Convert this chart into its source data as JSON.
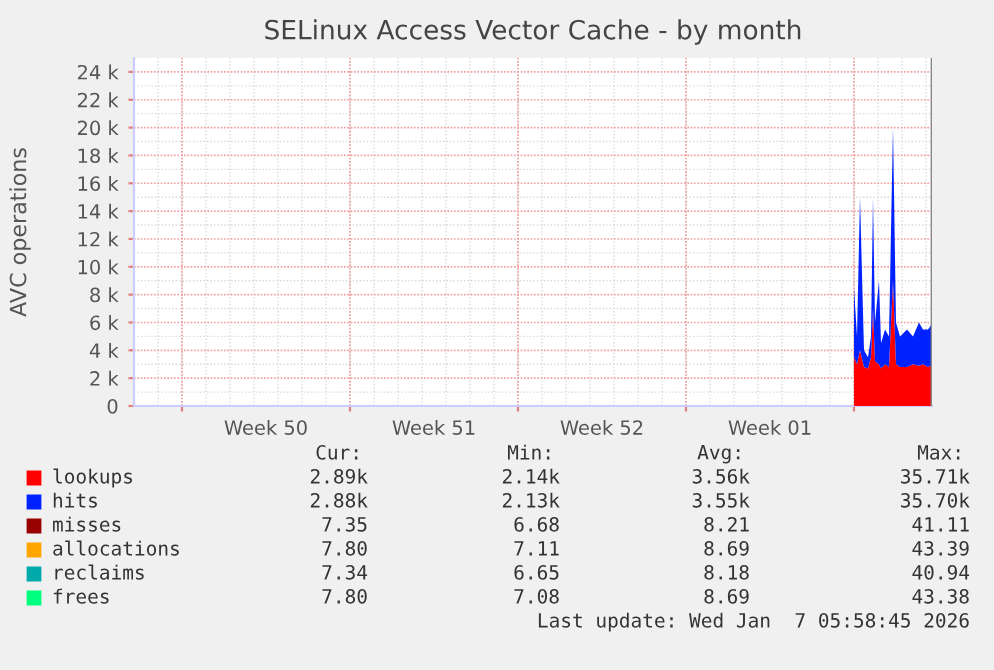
{
  "chart_data": {
    "type": "area",
    "title": "SELinux Access Vector Cache - by month",
    "ylabel": "AVC operations",
    "stacked": true,
    "x": [
      "2026-01-04T00:00",
      "2026-01-04T03:00",
      "2026-01-04T06:00",
      "2026-01-04T10:00",
      "2026-01-04T14:00",
      "2026-01-04T17:00",
      "2026-01-04T19:00",
      "2026-01-04T21:00",
      "2026-01-05T01:00",
      "2026-01-05T03:00",
      "2026-01-05T07:00",
      "2026-01-05T11:00",
      "2026-01-05T15:00",
      "2026-01-05T18:00",
      "2026-01-05T22:00",
      "2026-01-06T05:00",
      "2026-01-06T11:00",
      "2026-01-06T17:00",
      "2026-01-06T21:00",
      "2026-01-07T02:00",
      "2026-01-07T05:00"
    ],
    "series": [
      {
        "name": "lookups",
        "color": "#ff0000",
        "values": [
          3500,
          3000,
          4000,
          2800,
          2700,
          3500,
          7000,
          3200,
          3000,
          2700,
          3000,
          2800,
          9000,
          3000,
          2800,
          2800,
          3000,
          2900,
          3000,
          2800,
          2900
        ]
      },
      {
        "name": "hits",
        "color": "#0022ff",
        "values": [
          5000,
          2000,
          11000,
          1200,
          800,
          1500,
          8000,
          2800,
          6000,
          1800,
          2500,
          2200,
          11000,
          3000,
          2200,
          2700,
          2000,
          3100,
          2500,
          2700,
          2900
        ]
      },
      {
        "name": "misses",
        "color": "#990000",
        "values": [
          null,
          null,
          null,
          null,
          null,
          null,
          null,
          null,
          null,
          null,
          null,
          null,
          null,
          null,
          null,
          null,
          null,
          null,
          null,
          null,
          null
        ]
      },
      {
        "name": "allocations",
        "color": "#ffa500",
        "values": [
          null,
          null,
          null,
          null,
          null,
          null,
          null,
          null,
          null,
          null,
          null,
          null,
          null,
          null,
          null,
          null,
          null,
          null,
          null,
          null,
          null
        ]
      },
      {
        "name": "reclaims",
        "color": "#00aaaa",
        "values": [
          null,
          null,
          null,
          null,
          null,
          null,
          null,
          null,
          null,
          null,
          null,
          null,
          null,
          null,
          null,
          null,
          null,
          null,
          null,
          null,
          null
        ]
      },
      {
        "name": "frees",
        "color": "#00ff7f",
        "values": [
          null,
          null,
          null,
          null,
          null,
          null,
          null,
          null,
          null,
          null,
          null,
          null,
          null,
          null,
          null,
          null,
          null,
          null,
          null,
          null,
          null
        ]
      }
    ],
    "xlim": [
      "2025-12-05T00:00",
      "2026-01-07T06:00"
    ],
    "xticks": [
      {
        "value": "2025-12-07",
        "label": null
      },
      {
        "value": "2025-12-10T12:00",
        "label": "Week 50"
      },
      {
        "value": "2025-12-14",
        "label": null
      },
      {
        "value": "2025-12-17T12:00",
        "label": "Week 51"
      },
      {
        "value": "2025-12-21",
        "label": null
      },
      {
        "value": "2025-12-24T12:00",
        "label": "Week 52"
      },
      {
        "value": "2025-12-28",
        "label": null
      },
      {
        "value": "2025-12-31T12:00",
        "label": "Week 01"
      },
      {
        "value": "2026-01-04",
        "label": null
      }
    ],
    "ylim": [
      0,
      25000
    ],
    "yticks": [
      0,
      {
        "value": 2000,
        "label": "2 k"
      },
      {
        "value": 4000,
        "label": "4 k"
      },
      {
        "value": 6000,
        "label": "6 k"
      },
      {
        "value": 8000,
        "label": "8 k"
      },
      {
        "value": 10000,
        "label": "10 k"
      },
      {
        "value": 12000,
        "label": "12 k"
      },
      {
        "value": 14000,
        "label": "14 k"
      },
      {
        "value": 16000,
        "label": "16 k"
      },
      {
        "value": 18000,
        "label": "18 k"
      },
      {
        "value": 20000,
        "label": "20 k"
      },
      {
        "value": 22000,
        "label": "22 k"
      },
      {
        "value": 24000,
        "label": "24 k"
      }
    ],
    "grid": true,
    "legend": "bottom",
    "annotations": [
      "Cur:",
      "Min:",
      "Avg:",
      "Max:",
      "2.89k",
      "2.14k",
      "3.56k",
      "35.71k",
      "2.88k",
      "2.13k",
      "3.55k",
      "35.70k",
      "7.35",
      "6.68",
      "8.21",
      "41.11",
      "7.80",
      "7.11",
      "8.69",
      "43.39",
      "7.34",
      "6.65",
      "8.18",
      "40.94",
      "7.80",
      "7.08",
      "8.69",
      "43.38",
      "Last update: Wed Jan  7 05:58:45 2026"
    ]
  }
}
